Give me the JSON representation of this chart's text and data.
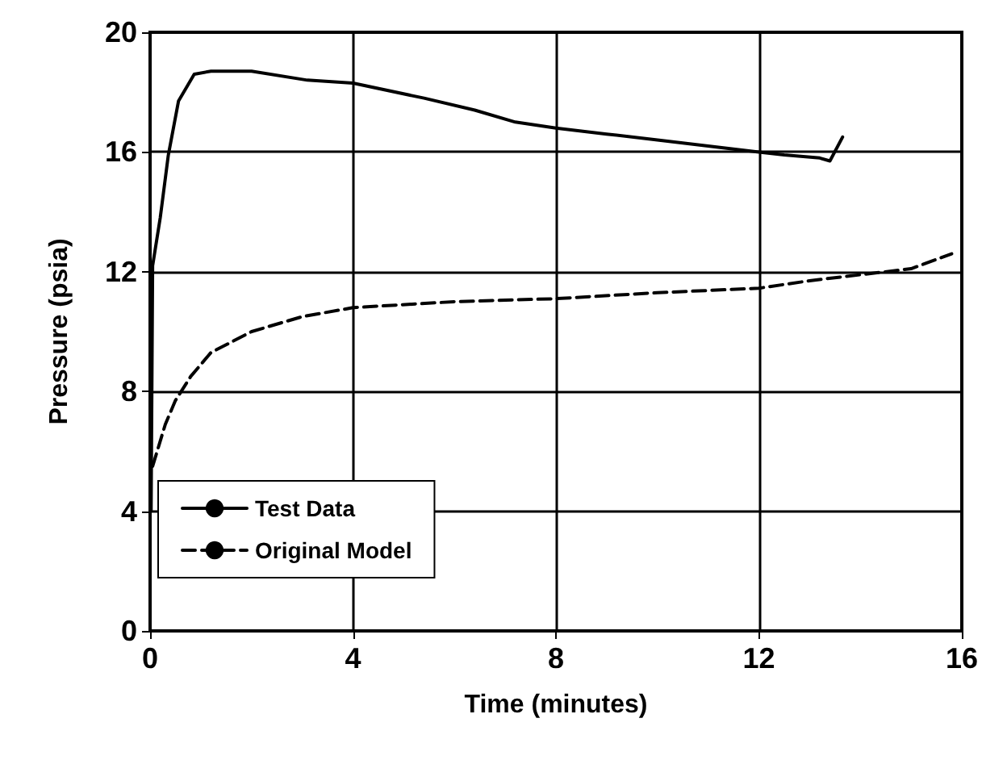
{
  "chart_data": {
    "type": "line",
    "xlabel": "Time (minutes)",
    "ylabel": "Pressure (psia)",
    "xlim": [
      0,
      16
    ],
    "xticks": [
      0,
      4,
      8,
      12,
      16
    ],
    "ylim": [
      0,
      20
    ],
    "yticks": [
      0,
      4,
      8,
      12,
      16,
      20
    ],
    "grid": true,
    "legend": "bottom left",
    "marker": "none",
    "series": [
      {
        "name": "Test Data",
        "color": "#000000",
        "line_style": "solid",
        "x": [
          0.02,
          0.05,
          0.2,
          0.36,
          0.56,
          0.87,
          1.2,
          2.0,
          3.1,
          4.0,
          5.4,
          6.4,
          7.2,
          8.0,
          9.0,
          10.0,
          11.0,
          12.0,
          12.5,
          13.2,
          13.4,
          13.65
        ],
        "values": [
          4.0,
          12.2,
          13.8,
          15.9,
          17.7,
          18.6,
          18.7,
          18.7,
          18.4,
          18.3,
          17.8,
          17.4,
          17.0,
          16.8,
          16.6,
          16.4,
          16.2,
          16.0,
          15.9,
          15.8,
          15.7,
          16.5
        ]
      },
      {
        "name": "Original Model",
        "color": "#000000",
        "line_style": "dashed",
        "x": [
          0.05,
          0.3,
          0.5,
          0.8,
          1.2,
          2.0,
          3.0,
          4.0,
          6.0,
          8.0,
          10.0,
          12.0,
          13.0,
          14.0,
          15.0,
          15.8
        ],
        "values": [
          5.5,
          6.9,
          7.7,
          8.5,
          9.3,
          10.0,
          10.5,
          10.8,
          11.0,
          11.1,
          11.3,
          11.45,
          11.7,
          11.9,
          12.1,
          12.6
        ]
      }
    ]
  }
}
